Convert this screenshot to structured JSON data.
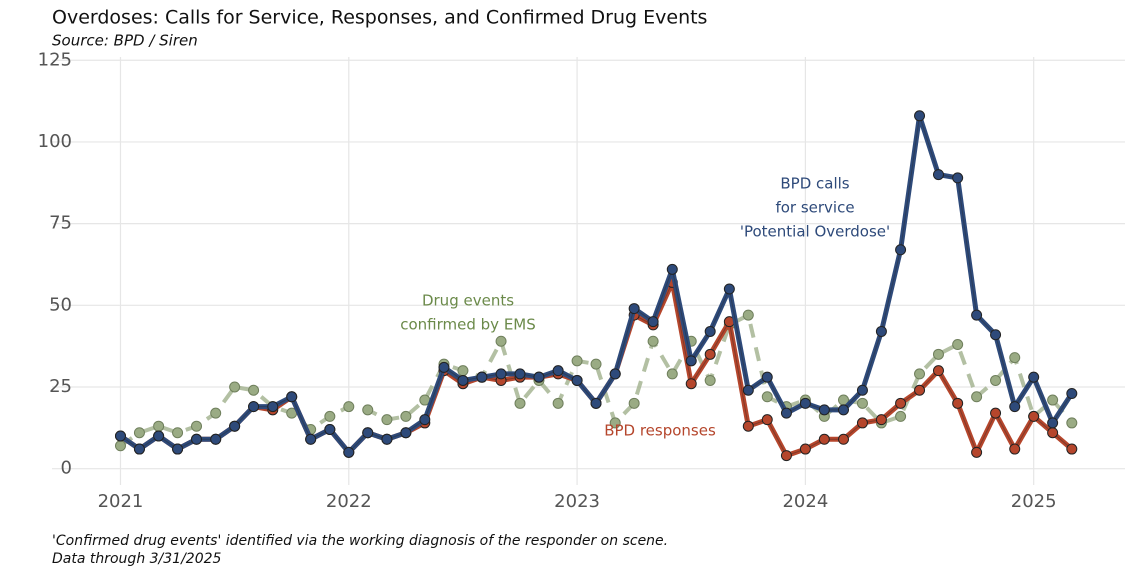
{
  "chart_data": {
    "type": "line",
    "title": "Overdoses: Calls for Service, Responses, and Confirmed Drug Events",
    "subtitle": "Source: BPD / Siren",
    "caption": [
      "'Confirmed drug events' identified via the working diagnosis of the responder on scene.",
      "Data through 3/31/2025"
    ],
    "annotations": [
      {
        "lines": [
          "BPD calls",
          "for service",
          "'Potential Overdose'"
        ],
        "color": "#2e4a7a"
      },
      {
        "lines": [
          "Drug events",
          "confirmed by EMS"
        ],
        "color": "#6b8a4a"
      },
      {
        "lines": [
          "BPD responses"
        ],
        "color": "#b5462c"
      }
    ],
    "x": [
      2021.0,
      2021.083,
      2021.167,
      2021.25,
      2021.333,
      2021.417,
      2021.5,
      2021.583,
      2021.667,
      2021.75,
      2021.833,
      2021.917,
      2022.0,
      2022.083,
      2022.167,
      2022.25,
      2022.333,
      2022.417,
      2022.5,
      2022.583,
      2022.667,
      2022.75,
      2022.833,
      2022.917,
      2023.0,
      2023.083,
      2023.167,
      2023.25,
      2023.333,
      2023.417,
      2023.5,
      2023.583,
      2023.667,
      2023.75,
      2023.833,
      2023.917,
      2024.0,
      2024.083,
      2024.167,
      2024.25,
      2024.333,
      2024.417,
      2024.5,
      2024.583,
      2024.667,
      2024.75,
      2024.833,
      2024.917,
      2025.0,
      2025.083,
      2025.167
    ],
    "series": [
      {
        "name": "Drug events confirmed by EMS",
        "color": "#9aab84",
        "dashed": true,
        "values": [
          7,
          11,
          13,
          11,
          13,
          17,
          25,
          24,
          19,
          17,
          12,
          16,
          19,
          18,
          15,
          16,
          21,
          32,
          30,
          28,
          39,
          20,
          27,
          20,
          33,
          32,
          14,
          20,
          39,
          29,
          39,
          27,
          44,
          47,
          22,
          19,
          21,
          16,
          21,
          20,
          14,
          16,
          29,
          35,
          38,
          22,
          27,
          34,
          16,
          21,
          14
        ]
      },
      {
        "name": "BPD responses",
        "color": "#b5462c",
        "values": [
          10,
          6,
          10,
          6,
          9,
          9,
          13,
          19,
          18,
          22,
          9,
          12,
          5,
          11,
          9,
          11,
          14,
          30,
          26,
          28,
          27,
          28,
          28,
          29,
          27,
          20,
          29,
          47,
          44,
          57,
          26,
          35,
          45,
          13,
          15,
          4,
          6,
          9,
          9,
          14,
          15,
          20,
          24,
          30,
          20,
          5,
          17,
          6,
          16,
          11,
          6
        ]
      },
      {
        "name": "BPD calls for service 'Potential Overdose'",
        "color": "#2e4a7a",
        "values": [
          10,
          6,
          10,
          6,
          9,
          9,
          13,
          19,
          19,
          22,
          9,
          12,
          5,
          11,
          9,
          11,
          15,
          31,
          27,
          28,
          29,
          29,
          28,
          30,
          27,
          20,
          29,
          49,
          45,
          61,
          33,
          42,
          55,
          24,
          28,
          17,
          20,
          18,
          18,
          24,
          42,
          67,
          108,
          90,
          89,
          47,
          41,
          19,
          28,
          14,
          23
        ]
      }
    ],
    "xlim": [
      2020.7,
      2025.4
    ],
    "xticks": [
      2021,
      2022,
      2023,
      2024,
      2025
    ],
    "ylim": [
      -5,
      126
    ],
    "yticks": [
      0,
      25,
      50,
      75,
      100,
      125
    ],
    "grid": true
  }
}
